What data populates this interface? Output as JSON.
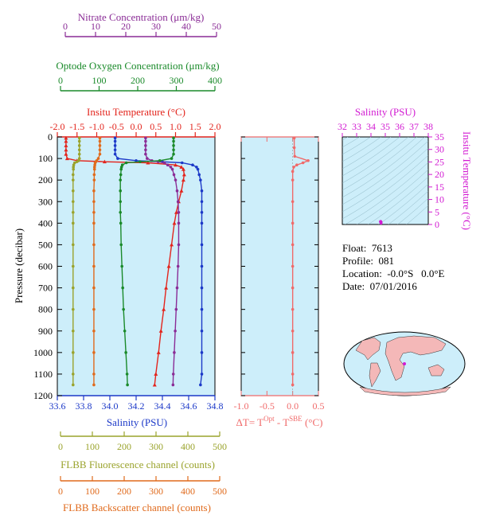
{
  "colors": {
    "panel_bg": "#cdeefa",
    "nitrate": "#8a2c96",
    "oxygen": "#1a8a2a",
    "temperature": "#e3241c",
    "salinity": "#1c39c8",
    "fluorescence": "#9aa32c",
    "backscatter": "#e06a1c",
    "delta_t": "#f06a6a",
    "ts_axis": "#d21bd2",
    "land": "#f4b8b8",
    "ocean": "#cdeefa"
  },
  "top_axes": {
    "nitrate": {
      "label": "Nitrate Concentration (μm/kg)",
      "ticks": [
        "0",
        "10",
        "20",
        "30",
        "40",
        "50"
      ],
      "range": [
        0,
        50
      ]
    },
    "oxygen": {
      "label": "Optode Oxygen Concentration (μm/kg)",
      "ticks": [
        "0",
        "100",
        "200",
        "300",
        "400"
      ],
      "range": [
        0,
        400
      ]
    },
    "temperature": {
      "label": "Insitu Temperature (°C)",
      "ticks": [
        "-2.0",
        "-1.5",
        "-1.0",
        "-0.5",
        "0.0",
        "0.5",
        "1.0",
        "1.5",
        "2.0"
      ],
      "range": [
        -2.0,
        2.0
      ]
    }
  },
  "left_axis": {
    "label": "Pressure (decibar)",
    "ticks": [
      "0",
      "100",
      "200",
      "300",
      "400",
      "500",
      "600",
      "700",
      "800",
      "900",
      "1000",
      "1100",
      "1200"
    ],
    "range": [
      0,
      1200
    ]
  },
  "bottom_axes": {
    "salinity": {
      "label": "Salinity (PSU)",
      "ticks": [
        "33.6",
        "33.8",
        "34.0",
        "34.2",
        "34.4",
        "34.6",
        "34.8"
      ],
      "range": [
        33.6,
        34.8
      ]
    },
    "fluorescence": {
      "label": "FLBB Fluorescence channel (counts)",
      "ticks": [
        "0",
        "100",
        "200",
        "300",
        "400",
        "500"
      ],
      "range": [
        0,
        500
      ]
    },
    "backscatter": {
      "label": "FLBB Backscatter channel (counts)",
      "ticks": [
        "0",
        "100",
        "200",
        "300",
        "400",
        "500"
      ],
      "range": [
        0,
        500
      ]
    }
  },
  "delta_panel": {
    "xlabel_main": "ΔT= T",
    "xlabel_sup1": "Opt",
    "xlabel_mid": " - T",
    "xlabel_sup2": "SBE",
    "xlabel_unit": " (°C)",
    "ticks": [
      "-1.0",
      "-0.5",
      "0.0",
      "0.5"
    ],
    "range": [
      -1.0,
      0.5
    ]
  },
  "ts_panel": {
    "top_label": "Salinity (PSU)",
    "top_ticks": [
      "32",
      "33",
      "34",
      "35",
      "36",
      "37",
      "38"
    ],
    "right_label": "Insitu Temperature (°C)",
    "right_ticks": [
      "0",
      "5",
      "10",
      "15",
      "20",
      "25",
      "30",
      "35"
    ],
    "x_range": [
      32,
      38
    ],
    "y_range": [
      0,
      35
    ]
  },
  "info": {
    "float": "Float:  7613",
    "profile": "Profile:  081",
    "location": "Location:  -0.0°S   0.0°E",
    "date": "Date:  07/01/2016"
  },
  "chart_data": [
    {
      "type": "line",
      "name": "profile",
      "y_axis": "pressure_decibar",
      "pressure": [
        5,
        20,
        40,
        60,
        80,
        100,
        110,
        115,
        120,
        130,
        140,
        150,
        175,
        200,
        250,
        300,
        350,
        400,
        500,
        600,
        700,
        800,
        900,
        1000,
        1100,
        1150
      ],
      "series": [
        {
          "name": "temperature",
          "x_axis": "Insitu Temperature (°C)",
          "values": [
            -1.78,
            -1.78,
            -1.78,
            -1.78,
            -1.78,
            -1.75,
            -1.5,
            -0.8,
            0.3,
            1.0,
            1.15,
            1.2,
            1.22,
            1.2,
            1.15,
            1.08,
            1.02,
            0.97,
            0.9,
            0.83,
            0.76,
            0.7,
            0.63,
            0.57,
            0.5,
            0.47
          ]
        },
        {
          "name": "salinity",
          "x_axis": "Salinity (PSU)",
          "values": [
            34.04,
            34.04,
            34.04,
            34.04,
            34.04,
            34.06,
            34.2,
            34.4,
            34.55,
            34.63,
            34.66,
            34.67,
            34.68,
            34.69,
            34.7,
            34.7,
            34.7,
            34.7,
            34.7,
            34.7,
            34.7,
            34.7,
            34.7,
            34.7,
            34.7,
            34.69
          ]
        },
        {
          "name": "nitrate",
          "x_axis": "Nitrate Concentration (μm/kg)",
          "values": [
            28,
            28,
            28,
            28,
            28,
            28.5,
            30,
            32,
            34,
            35,
            36,
            36.5,
            37,
            37.5,
            38,
            38.3,
            38.5,
            38.5,
            38.5,
            38.3,
            38,
            37.7,
            37.4,
            37.1,
            36.8,
            36.7
          ]
        },
        {
          "name": "oxygen",
          "x_axis": "Optode Oxygen Concentration (μm/kg)",
          "values": [
            295,
            295,
            295,
            295,
            295,
            290,
            260,
            210,
            175,
            165,
            163,
            162,
            161,
            160,
            160,
            160,
            160,
            161,
            162,
            164,
            166,
            168,
            171,
            174,
            177,
            178
          ]
        },
        {
          "name": "fluorescence",
          "x_axis": "FLBB Fluorescence channel (counts)",
          "values": [
            70,
            70,
            70,
            70,
            70,
            70,
            68,
            62,
            55,
            52,
            51,
            51,
            50,
            50,
            50,
            50,
            50,
            50,
            50,
            50,
            50,
            50,
            50,
            50,
            50,
            50
          ]
        },
        {
          "name": "backscatter",
          "x_axis": "FLBB Backscatter channel (counts)",
          "values": [
            135,
            135,
            135,
            135,
            135,
            130,
            125,
            122,
            120,
            119,
            118,
            118,
            117,
            117,
            116,
            116,
            116,
            116,
            116,
            116,
            116,
            116,
            116,
            116,
            116,
            116
          ]
        }
      ]
    },
    {
      "type": "line",
      "name": "delta_t",
      "y_axis": "pressure_decibar",
      "pressure": [
        5,
        50,
        90,
        110,
        120,
        130,
        140,
        160,
        200,
        300,
        400,
        500,
        600,
        700,
        800,
        900,
        1000,
        1100,
        1150
      ],
      "values": [
        0.03,
        0.03,
        0.04,
        0.3,
        0.2,
        0.08,
        0.02,
        0.0,
        0.0,
        0.0,
        0.0,
        0.0,
        0.0,
        0.0,
        0.0,
        0.0,
        0.0,
        0.0,
        0.0
      ]
    },
    {
      "type": "scatter",
      "name": "ts_diagram",
      "x": [
        34.7,
        34.7,
        34.7,
        34.7,
        34.68,
        34.66
      ],
      "y": [
        0.5,
        0.7,
        0.9,
        1.0,
        1.2,
        1.15
      ],
      "xlim": [
        32,
        38
      ],
      "ylim": [
        0,
        35
      ]
    }
  ]
}
